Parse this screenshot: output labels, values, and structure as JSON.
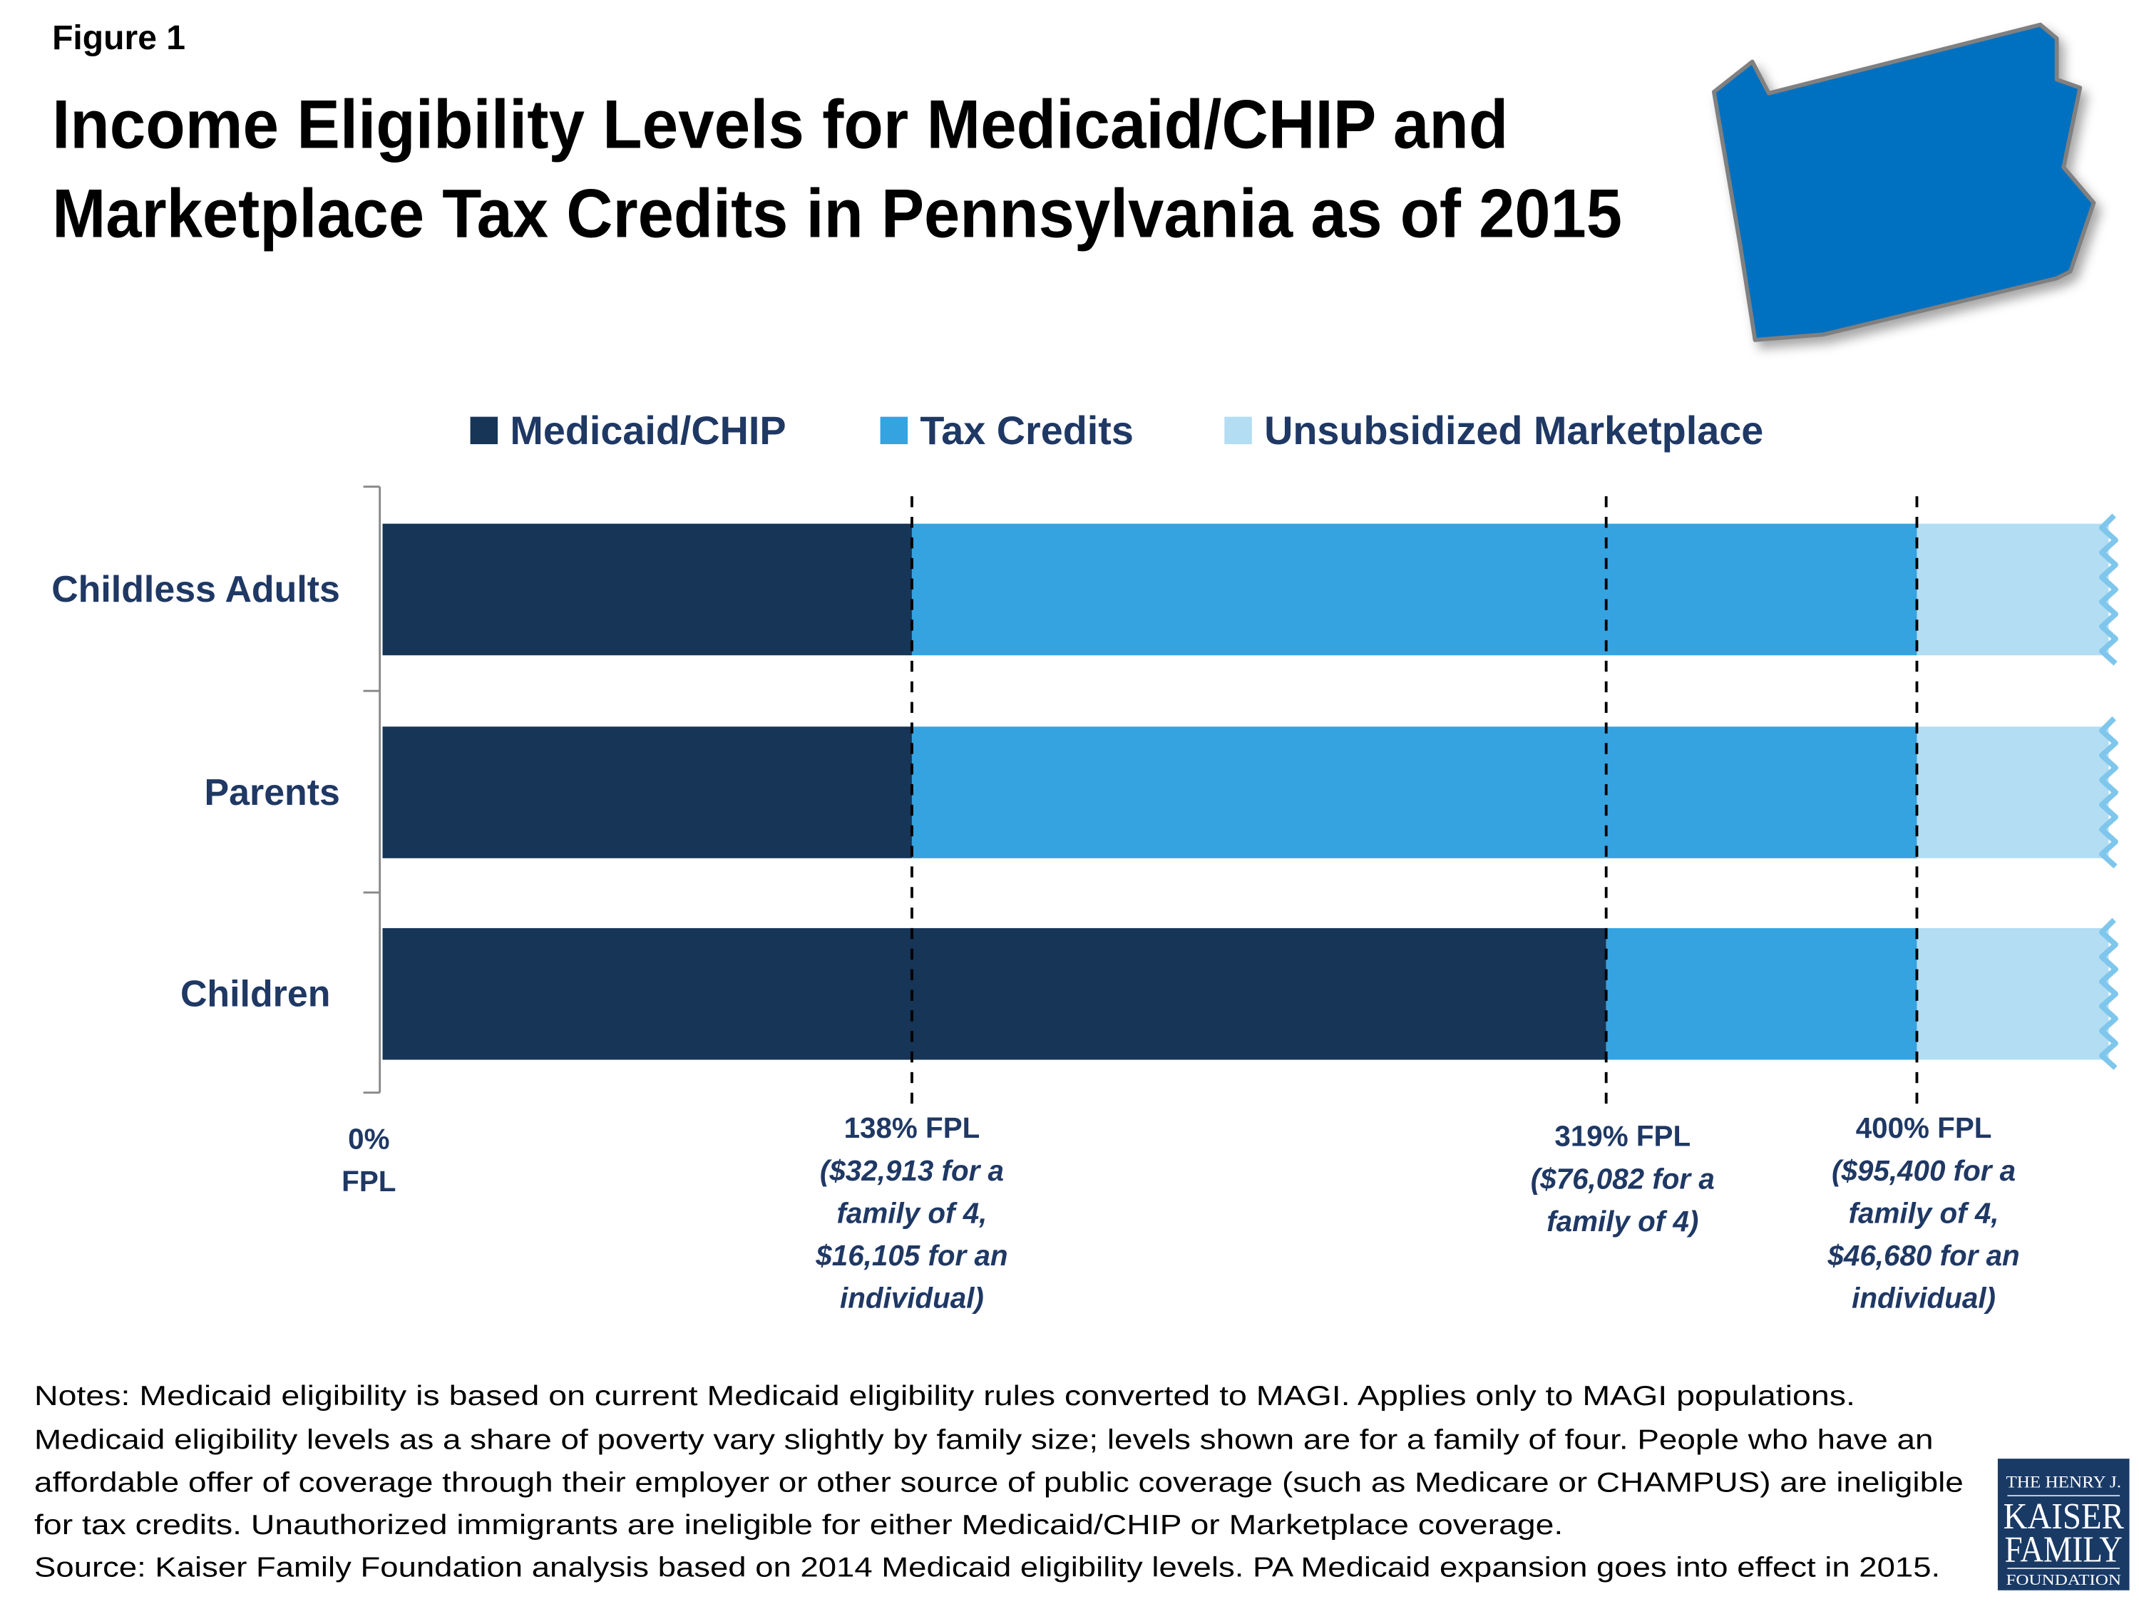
{
  "figure_label": "Figure 1",
  "title_lines": [
    "Income Eligibility Levels for Medicaid/CHIP and",
    "Marketplace Tax Credits in Pennsylvania as of 2015"
  ],
  "colors": {
    "medicaid": "#163557",
    "tax_credits": "#35a3e0",
    "unsubsidized": "#b2ddf3",
    "wave": "#7fc6ec",
    "state_map": "#0070c0",
    "state_outline": "#808080",
    "logo_bg": "#1a3a66",
    "label_text": "#1f3864"
  },
  "state_map_icon": "pennsylvania-outline",
  "chart_data": {
    "type": "bar",
    "orientation": "horizontal-stacked",
    "x_unit": "% FPL",
    "xlim": [
      0,
      450
    ],
    "categories": [
      "Childless Adults",
      "Parents",
      "Children"
    ],
    "series": [
      {
        "name": "Medicaid/CHIP",
        "ranges": [
          [
            0,
            138
          ],
          [
            0,
            138
          ],
          [
            0,
            319
          ]
        ]
      },
      {
        "name": "Tax Credits",
        "ranges": [
          [
            138,
            400
          ],
          [
            138,
            400
          ],
          [
            319,
            400
          ]
        ]
      },
      {
        "name": "Unsubsidized Marketplace",
        "ranges": [
          [
            400,
            450
          ],
          [
            400,
            450
          ],
          [
            400,
            450
          ]
        ]
      }
    ],
    "legend_placement": "top",
    "reference_lines": [
      138,
      319,
      400
    ],
    "x_tick_labels": [
      {
        "value": 0,
        "lines": [
          "0%",
          "FPL"
        ],
        "italic_from": 99
      },
      {
        "value": 138,
        "lines": [
          "138% FPL",
          "($32,913 for a",
          "family of 4,",
          "$16,105 for an",
          "individual)"
        ],
        "italic_from": 1
      },
      {
        "value": 319,
        "lines": [
          "319% FPL",
          "($76,082 for a",
          "family of 4)"
        ],
        "italic_from": 1
      },
      {
        "value": 400,
        "lines": [
          "400% FPL",
          "($95,400 for a",
          "family of 4,",
          "$46,680 for an",
          "individual)"
        ],
        "italic_from": 1
      }
    ]
  },
  "notes_lines": [
    "Notes: Medicaid eligibility is based on current Medicaid eligibility rules converted to MAGI. Applies only to MAGI populations.",
    "Medicaid eligibility levels as a share of poverty vary slightly by family size; levels shown are for a family of four. People who have an",
    "affordable offer of coverage through their employer or other source of public coverage (such as Medicare or CHAMPUS) are ineligible",
    "for tax credits. Unauthorized immigrants are ineligible for either Medicaid/CHIP or Marketplace coverage.",
    "Source: Kaiser Family Foundation analysis based on 2014 Medicaid eligibility levels. PA Medicaid expansion goes into effect in 2015."
  ],
  "logo": {
    "line1": "THE HENRY J.",
    "line2": "KAISER",
    "line3": "FAMILY",
    "line4": "FOUNDATION"
  }
}
